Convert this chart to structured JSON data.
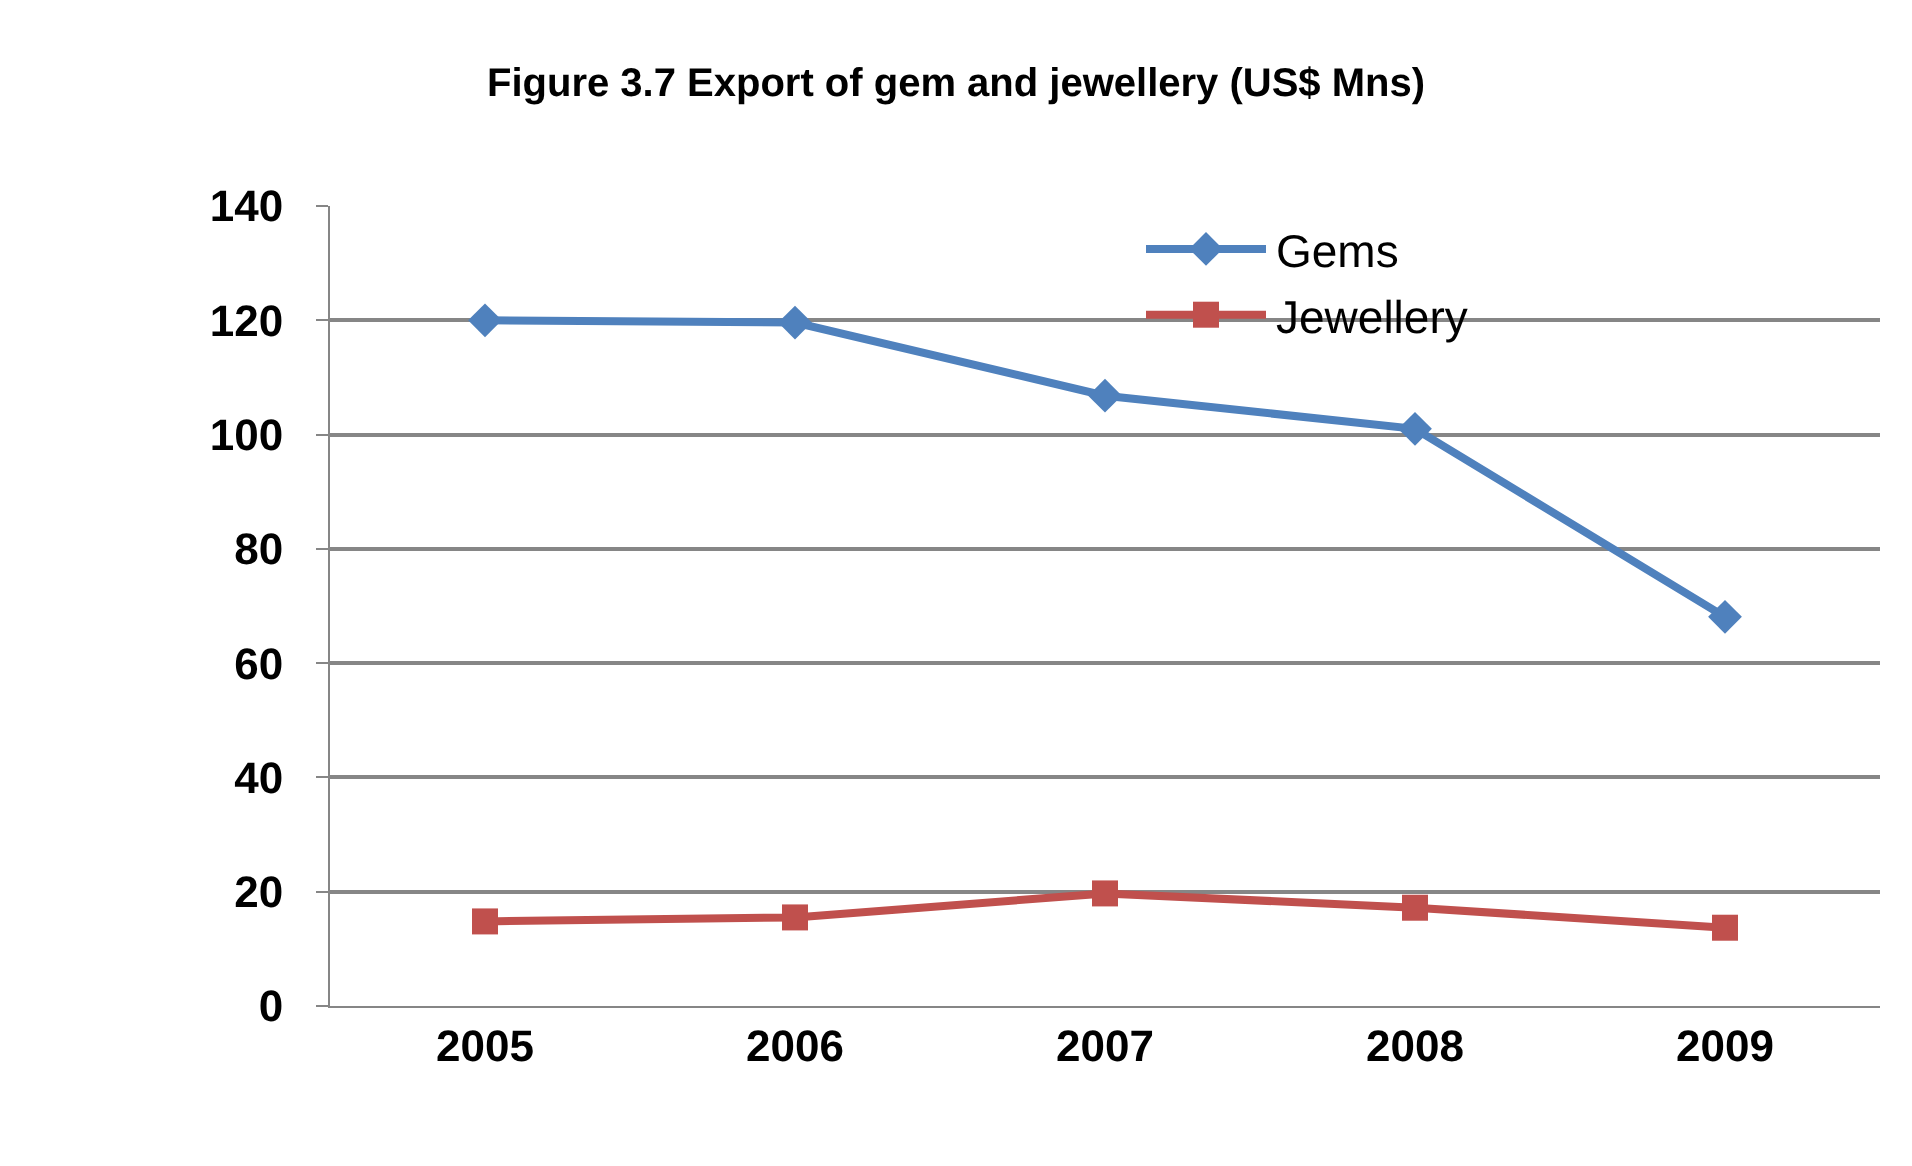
{
  "chart_data": {
    "type": "line",
    "title": "Figure 3.7 Export of gem and jewellery (US$ Mns)",
    "categories": [
      "2005",
      "2006",
      "2007",
      "2008",
      "2009"
    ],
    "series": [
      {
        "name": "Gems",
        "color": "#4f81bd",
        "marker": "diamond",
        "values": [
          120,
          119.6,
          106.8,
          101,
          68.1
        ]
      },
      {
        "name": "Jewellery",
        "color": "#c0504d",
        "marker": "square",
        "values": [
          14.8,
          15.5,
          19.7,
          17.2,
          13.7
        ]
      }
    ],
    "ylim": [
      0,
      140
    ],
    "yticks": [
      0,
      20,
      40,
      60,
      80,
      100,
      120,
      140
    ],
    "grid": "y",
    "legend": "top right",
    "line_style": "solid"
  }
}
